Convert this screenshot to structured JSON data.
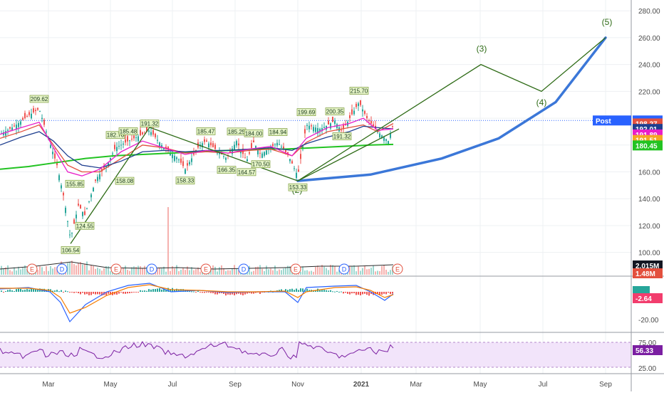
{
  "chart_data": {
    "type": "line",
    "price_axis": {
      "ticks": [
        "280.00",
        "260.00",
        "240.00",
        "220.00",
        "200.00",
        "180.00",
        "160.00",
        "140.00",
        "120.00",
        "100.00"
      ],
      "values": [
        280,
        260,
        240,
        220,
        200,
        180,
        160,
        140,
        120,
        100
      ],
      "range": [
        94,
        287
      ]
    },
    "macd_axis": {
      "ticks": [
        "-20.00"
      ]
    },
    "rsi_axis": {
      "ticks": [
        "75.00",
        "50.00",
        "25.00"
      ]
    },
    "x_axis": {
      "labels": [
        "Mar",
        "May",
        "Jul",
        "Sep",
        "Nov",
        "2021",
        "Mar",
        "May",
        "Jul",
        "Sep"
      ],
      "bold_label": "2021"
    },
    "current_price": {
      "label": "Post",
      "value": "198.31",
      "y": 198.31
    },
    "ma_tags": [
      {
        "value": "198.27",
        "y": 196.1,
        "color": "#e3503e"
      },
      {
        "value": "192.01",
        "y": 192.0,
        "color": "#1f3f8f"
      },
      {
        "value": "191.89",
        "y": 187.9,
        "color": "#e91ec9"
      },
      {
        "value": "191.51",
        "y": 183.8,
        "color": "#f5a623"
      },
      {
        "value": "180.45",
        "y": 179.7,
        "color": "#22c322"
      }
    ],
    "volume_tags": [
      {
        "value": "2.015M",
        "color": "#131722"
      },
      {
        "value": "1.48M",
        "color": "#e3503e"
      }
    ],
    "macd_tags": [
      {
        "value": "-2.64",
        "color": "#f23d6d"
      }
    ],
    "rsi_tags": [
      {
        "value": "56.33",
        "color": "#7b1fa2"
      }
    ],
    "peak_labels": [
      {
        "text": "209.62",
        "x": 55,
        "y": 209.6,
        "pos": "above"
      },
      {
        "text": "182.70",
        "x": 162,
        "y": 182.7,
        "pos": "above"
      },
      {
        "text": "185.48",
        "x": 180,
        "y": 185.5,
        "pos": "above"
      },
      {
        "text": "191.32",
        "x": 210,
        "y": 191.3,
        "pos": "above"
      },
      {
        "text": "185.47",
        "x": 289,
        "y": 185.5,
        "pos": "above"
      },
      {
        "text": "185.25",
        "x": 332,
        "y": 185.3,
        "pos": "above"
      },
      {
        "text": "184.00",
        "x": 356,
        "y": 184.0,
        "pos": "above"
      },
      {
        "text": "184.94",
        "x": 390,
        "y": 184.9,
        "pos": "above"
      },
      {
        "text": "199.69",
        "x": 430,
        "y": 199.7,
        "pos": "above"
      },
      {
        "text": "200.35",
        "x": 470,
        "y": 200.3,
        "pos": "above"
      },
      {
        "text": "215.70",
        "x": 504,
        "y": 215.7,
        "pos": "above"
      },
      {
        "text": "155.85",
        "x": 105,
        "y": 155.9,
        "pos": "below"
      },
      {
        "text": "158.08",
        "x": 175,
        "y": 158.1,
        "pos": "below"
      },
      {
        "text": "158.33",
        "x": 260,
        "y": 158.3,
        "pos": "below"
      },
      {
        "text": "166.35",
        "x": 318,
        "y": 166.3,
        "pos": "below"
      },
      {
        "text": "164.57",
        "x": 346,
        "y": 164.6,
        "pos": "below"
      },
      {
        "text": "170.50",
        "x": 366,
        "y": 170.5,
        "pos": "below"
      },
      {
        "text": "191.32",
        "x": 480,
        "y": 191.3,
        "pos": "below"
      },
      {
        "text": "153.33",
        "x": 418,
        "y": 153.3,
        "pos": "below"
      },
      {
        "text": "124.55",
        "x": 119,
        "y": 124.6,
        "pos": "below"
      },
      {
        "text": "106.54",
        "x": 99,
        "y": 106.5,
        "pos": "below"
      }
    ],
    "wave_labels": [
      {
        "text": "(1)",
        "x": 204,
        "y": 194.5
      },
      {
        "text": "(2)",
        "x": 417,
        "y": 144.5
      },
      {
        "text": "(3)",
        "x": 676,
        "y": 249.5
      },
      {
        "text": "(4)",
        "x": 760,
        "y": 209.5
      },
      {
        "text": "(5)",
        "x": 852,
        "y": 269.5
      }
    ],
    "wave_path": [
      [
        99,
        106.5
      ],
      [
        210,
        193.2
      ],
      [
        418,
        153.3
      ],
      [
        675,
        240
      ],
      [
        760,
        220
      ],
      [
        850,
        260
      ]
    ],
    "wave_channel": [
      [
        418,
        153.3
      ],
      [
        560,
        192
      ]
    ],
    "projection_curve": [
      [
        418,
        153.3
      ],
      [
        520,
        158
      ],
      [
        620,
        170
      ],
      [
        700,
        185
      ],
      [
        780,
        212
      ],
      [
        850,
        260
      ]
    ],
    "event_markers": [
      {
        "x": 45,
        "letter": "E",
        "color": "#e3503e"
      },
      {
        "x": 87,
        "letter": "D",
        "color": "#2962ff"
      },
      {
        "x": 163,
        "letter": "E",
        "color": "#e3503e"
      },
      {
        "x": 213,
        "letter": "D",
        "color": "#2962ff"
      },
      {
        "x": 289,
        "letter": "E",
        "color": "#e3503e"
      },
      {
        "x": 342,
        "letter": "D",
        "color": "#2962ff"
      },
      {
        "x": 415,
        "letter": "E",
        "color": "#e3503e"
      },
      {
        "x": 483,
        "letter": "D",
        "color": "#2962ff"
      },
      {
        "x": 558,
        "letter": "E",
        "color": "#e3503e"
      }
    ],
    "series": [
      {
        "name": "",
        "color": "#22c322",
        "points": [
          [
            0,
            162
          ],
          [
            40,
            164
          ],
          [
            80,
            167
          ],
          [
            120,
            170
          ],
          [
            160,
            172
          ],
          [
            200,
            173
          ],
          [
            240,
            174
          ],
          [
            280,
            175
          ],
          [
            320,
            176
          ],
          [
            360,
            177
          ],
          [
            400,
            177
          ],
          [
            440,
            178
          ],
          [
            480,
            179
          ],
          [
            520,
            180
          ],
          [
            552,
            180.5
          ]
        ]
      },
      {
        "name": "",
        "color": "#e3503e",
        "points": [
          [
            0,
            185
          ],
          [
            30,
            190
          ],
          [
            55,
            195
          ],
          [
            75,
            180
          ],
          [
            95,
            165
          ],
          [
            115,
            160
          ],
          [
            140,
            160
          ],
          [
            170,
            170
          ],
          [
            200,
            180
          ],
          [
            230,
            178
          ],
          [
            260,
            174
          ],
          [
            290,
            175
          ],
          [
            320,
            174
          ],
          [
            350,
            176
          ],
          [
            380,
            177
          ],
          [
            410,
            172
          ],
          [
            430,
            182
          ],
          [
            460,
            190
          ],
          [
            490,
            193
          ],
          [
            510,
            195
          ],
          [
            530,
            190
          ],
          [
            552,
            196
          ]
        ]
      },
      {
        "name": "",
        "color": "#1f3f8f",
        "points": [
          [
            0,
            180
          ],
          [
            30,
            186
          ],
          [
            55,
            190
          ],
          [
            75,
            183
          ],
          [
            95,
            172
          ],
          [
            115,
            165
          ],
          [
            140,
            163
          ],
          [
            170,
            168
          ],
          [
            200,
            175
          ],
          [
            230,
            176
          ],
          [
            260,
            175
          ],
          [
            290,
            176
          ],
          [
            320,
            176
          ],
          [
            350,
            177
          ],
          [
            380,
            178
          ],
          [
            410,
            176
          ],
          [
            430,
            181
          ],
          [
            460,
            186
          ],
          [
            490,
            190
          ],
          [
            510,
            194
          ],
          [
            530,
            193
          ],
          [
            552,
            192
          ]
        ]
      },
      {
        "name": "",
        "color": "#e91ec9",
        "points": [
          [
            0,
            188
          ],
          [
            30,
            193
          ],
          [
            55,
            197
          ],
          [
            75,
            178
          ],
          [
            95,
            160
          ],
          [
            115,
            157
          ],
          [
            140,
            162
          ],
          [
            170,
            175
          ],
          [
            200,
            183
          ],
          [
            230,
            178
          ],
          [
            260,
            173
          ],
          [
            290,
            176
          ],
          [
            320,
            174
          ],
          [
            350,
            177
          ],
          [
            380,
            179
          ],
          [
            410,
            172
          ],
          [
            430,
            185
          ],
          [
            460,
            193
          ],
          [
            490,
            196
          ],
          [
            510,
            200
          ],
          [
            530,
            191
          ],
          [
            552,
            192
          ]
        ]
      }
    ]
  }
}
